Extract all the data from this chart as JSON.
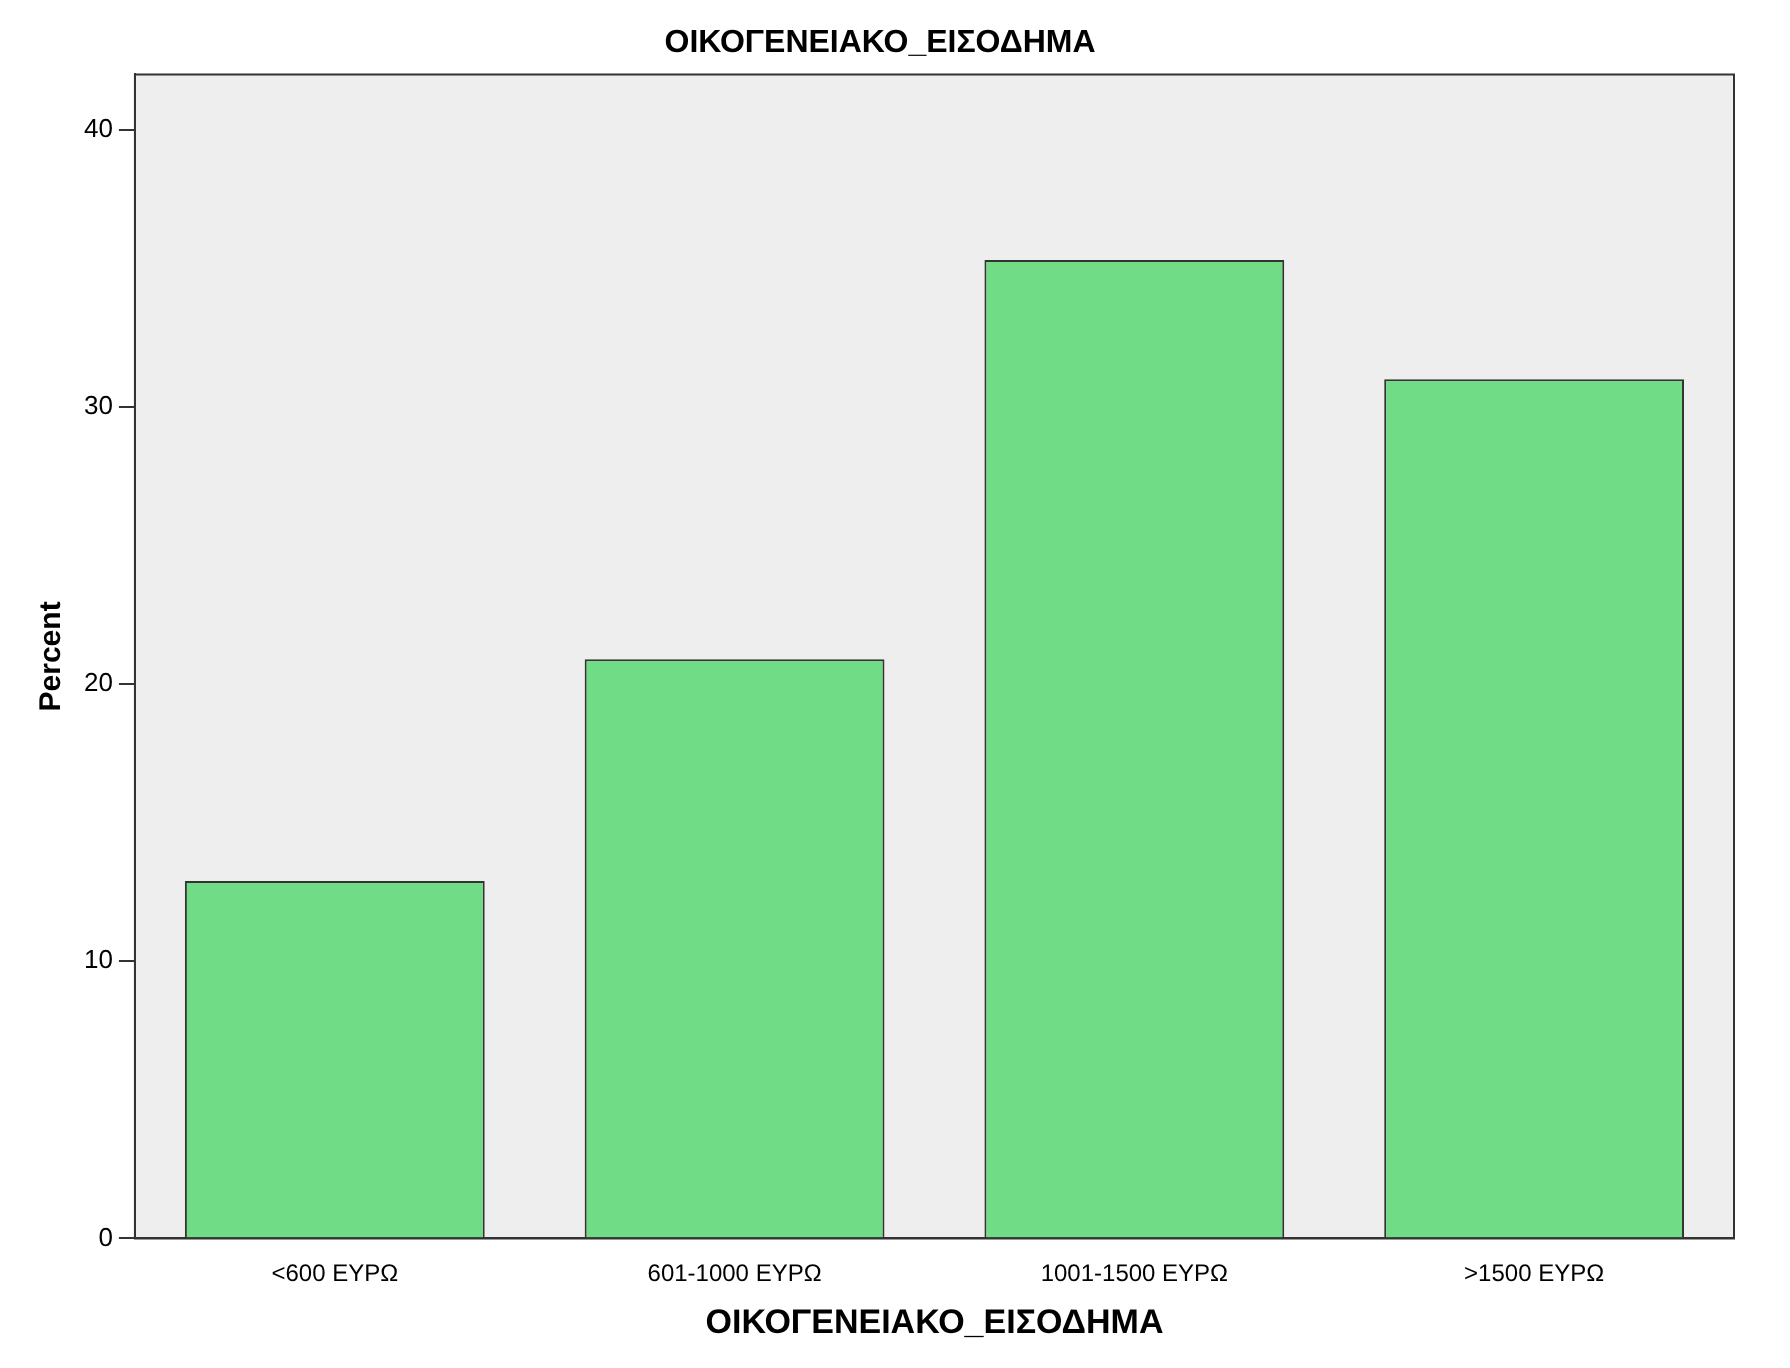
{
  "chart_data": {
    "type": "bar",
    "title": "ΟΙΚΟΓΕΝΕΙΑΚΟ_ΕΙΣΟΔΗΜΑ",
    "xlabel": "ΟΙΚΟΓΕΝΕΙΑΚΟ_ΕΙΣΟΔΗΜΑ",
    "ylabel": "Percent",
    "categories": [
      "<600 ΕΥΡΩ",
      "601-1000 ΕΥΡΩ",
      "1001-1500 ΕΥΡΩ",
      ">1500 ΕΥΡΩ"
    ],
    "values": [
      12.9,
      20.9,
      35.3,
      31.0
    ],
    "color": "#70dc85",
    "ylim": [
      0,
      42
    ],
    "yticks": [
      0,
      10,
      20,
      30,
      40
    ],
    "grid": false
  }
}
